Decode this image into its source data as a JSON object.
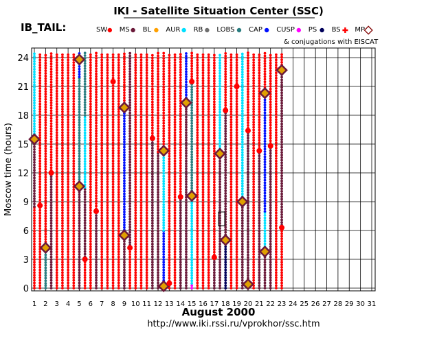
{
  "chart_data": {
    "type": "scatter",
    "title": "IKI - Satellite Situation Center (SSC)",
    "dataset_label": "IB_TAIL:",
    "xlabel": "August   2000",
    "ylabel": "Moscow time (hours)",
    "footer_url": "http://www.iki.rssi.ru/vprokhor/ssc.htm",
    "conjugations_note": "& conjugations with EISCAT",
    "xlim": [
      1,
      31
    ],
    "ylim": [
      0,
      24
    ],
    "x_ticks": [
      1,
      2,
      3,
      4,
      5,
      6,
      7,
      8,
      9,
      10,
      11,
      12,
      13,
      14,
      15,
      16,
      17,
      18,
      19,
      20,
      21,
      22,
      23,
      24,
      25,
      26,
      27,
      28,
      29,
      30,
      31
    ],
    "y_ticks": [
      0,
      3,
      6,
      9,
      12,
      15,
      18,
      21,
      24
    ],
    "grid": true,
    "legend_position": "top",
    "legend": [
      {
        "key": "SW",
        "label": "SW",
        "color": "#ff0000"
      },
      {
        "key": "MS",
        "label": "MS",
        "color": "#6b1a3a"
      },
      {
        "key": "BL",
        "label": "BL",
        "color": "#ffa000"
      },
      {
        "key": "AUR",
        "label": "AUR",
        "color": "#00e0ff"
      },
      {
        "key": "RB",
        "label": "RB",
        "color": "#707070"
      },
      {
        "key": "LOBS",
        "label": "LOBS",
        "color": "#2a7d80"
      },
      {
        "key": "CAP",
        "label": "CAP",
        "color": "#0010ff"
      },
      {
        "key": "CUSP",
        "label": "CUSP",
        "color": "#ff00ff"
      },
      {
        "key": "PS",
        "label": "PS",
        "color": "#00005a"
      },
      {
        "key": "BS",
        "label": "BS",
        "color": "#ff0000"
      },
      {
        "key": "MP",
        "label": "MP",
        "color": "#800000"
      }
    ],
    "columns": [
      {
        "day": 1,
        "segments": [
          [
            0,
            8.5,
            "SW"
          ],
          [
            8.5,
            15.5,
            "MS"
          ],
          [
            15.5,
            24.5,
            "AUR"
          ]
        ],
        "bs": [],
        "mp": [
          15.5
        ]
      },
      {
        "day": 1.5,
        "segments": [
          [
            0,
            24.5,
            "SW"
          ]
        ],
        "bs": [
          8.6
        ],
        "mp": []
      },
      {
        "day": 2,
        "segments": [
          [
            0,
            0.5,
            "LOBS"
          ],
          [
            0.5,
            4,
            "LOBS"
          ],
          [
            4,
            24.5,
            "SW"
          ]
        ],
        "bs": [],
        "mp": [
          4.2
        ]
      },
      {
        "day": 2.5,
        "segments": [
          [
            0,
            12,
            "MS"
          ],
          [
            12,
            24.5,
            "SW"
          ]
        ],
        "bs": [
          12
        ],
        "mp": []
      },
      {
        "day": 3,
        "segments": [
          [
            0,
            24.5,
            "SW"
          ]
        ],
        "bs": [],
        "mp": []
      },
      {
        "day": 3.5,
        "segments": [
          [
            0,
            24.5,
            "SW"
          ]
        ],
        "bs": [],
        "mp": []
      },
      {
        "day": 4,
        "segments": [
          [
            0,
            24.5,
            "SW"
          ]
        ],
        "bs": [],
        "mp": []
      },
      {
        "day": 4.5,
        "segments": [
          [
            0,
            24.5,
            "SW"
          ]
        ],
        "bs": [],
        "mp": []
      },
      {
        "day": 5,
        "segments": [
          [
            0,
            10.5,
            "MS"
          ],
          [
            10.5,
            22,
            "LOBS"
          ],
          [
            22,
            24.5,
            "CAP"
          ]
        ],
        "bs": [],
        "mp": [
          10.6,
          23.8
        ]
      },
      {
        "day": 5.5,
        "segments": [
          [
            0,
            3,
            "SW"
          ],
          [
            3,
            10.5,
            "MS"
          ],
          [
            10.5,
            18,
            "AUR"
          ],
          [
            18,
            24.5,
            "LOBS"
          ]
        ],
        "bs": [
          3
        ],
        "mp": []
      },
      {
        "day": 6,
        "segments": [
          [
            0,
            24.5,
            "SW"
          ]
        ],
        "bs": [],
        "mp": []
      },
      {
        "day": 6.5,
        "segments": [
          [
            0,
            8,
            "MS"
          ],
          [
            8,
            24.5,
            "SW"
          ]
        ],
        "bs": [
          8
        ],
        "mp": []
      },
      {
        "day": 7,
        "segments": [
          [
            0,
            24.5,
            "SW"
          ]
        ],
        "bs": [],
        "mp": []
      },
      {
        "day": 7.5,
        "segments": [
          [
            0,
            24.5,
            "SW"
          ]
        ],
        "bs": [],
        "mp": []
      },
      {
        "day": 8,
        "segments": [
          [
            0,
            24.5,
            "SW"
          ]
        ],
        "bs": [
          21.5
        ],
        "mp": []
      },
      {
        "day": 8.5,
        "segments": [
          [
            0,
            24.5,
            "SW"
          ]
        ],
        "bs": [],
        "mp": []
      },
      {
        "day": 9,
        "segments": [
          [
            0,
            5.5,
            "MS"
          ],
          [
            5.5,
            19,
            "CAP"
          ],
          [
            19,
            24.5,
            "SW"
          ]
        ],
        "bs": [],
        "mp": [
          5.5,
          18.8
        ]
      },
      {
        "day": 9.5,
        "segments": [
          [
            0,
            4.2,
            "SW"
          ],
          [
            4.2,
            24.5,
            "MS"
          ]
        ],
        "bs": [
          4.2
        ],
        "mp": []
      },
      {
        "day": 10,
        "segments": [
          [
            0,
            24.5,
            "SW"
          ]
        ],
        "bs": [],
        "mp": []
      },
      {
        "day": 10.5,
        "segments": [
          [
            0,
            24.5,
            "SW"
          ]
        ],
        "bs": [],
        "mp": []
      },
      {
        "day": 11,
        "segments": [
          [
            0,
            24.5,
            "SW"
          ]
        ],
        "bs": [],
        "mp": []
      },
      {
        "day": 11.5,
        "segments": [
          [
            0,
            15.6,
            "MS"
          ],
          [
            15.6,
            24.5,
            "SW"
          ]
        ],
        "bs": [
          15.6
        ],
        "mp": []
      },
      {
        "day": 12,
        "segments": [
          [
            0,
            14.2,
            "MS"
          ],
          [
            14.2,
            24.5,
            "SW"
          ]
        ],
        "bs": [],
        "mp": []
      },
      {
        "day": 12.5,
        "segments": [
          [
            0,
            6,
            "CAP"
          ],
          [
            6,
            14.2,
            "AUR"
          ],
          [
            14.2,
            24.5,
            "SW"
          ]
        ],
        "bs": [],
        "mp": [
          0.2,
          14.3
        ]
      },
      {
        "day": 13,
        "segments": [
          [
            0,
            0.5,
            "SW"
          ],
          [
            0.5,
            24.5,
            "SW"
          ]
        ],
        "bs": [
          0.5
        ],
        "mp": []
      },
      {
        "day": 13.5,
        "segments": [
          [
            0,
            24.5,
            "SW"
          ]
        ],
        "bs": [],
        "mp": []
      },
      {
        "day": 14,
        "segments": [
          [
            0,
            9.5,
            "MS"
          ],
          [
            9.5,
            24.5,
            "SW"
          ]
        ],
        "bs": [
          9.5
        ],
        "mp": []
      },
      {
        "day": 14.5,
        "segments": [
          [
            0,
            19.3,
            "MS"
          ],
          [
            19.3,
            24.5,
            "CAP"
          ]
        ],
        "bs": [],
        "mp": [
          19.3
        ]
      },
      {
        "day": 15,
        "segments": [
          [
            0,
            0.5,
            "CUSP"
          ],
          [
            0.5,
            9.6,
            "AUR"
          ],
          [
            9.6,
            21.5,
            "LOBS"
          ],
          [
            21.5,
            24.5,
            "SW"
          ]
        ],
        "bs": [
          21.5
        ],
        "mp": [
          9.6
        ]
      },
      {
        "day": 15.5,
        "segments": [
          [
            0,
            24.5,
            "SW"
          ]
        ],
        "bs": [],
        "mp": []
      },
      {
        "day": 16,
        "segments": [
          [
            0,
            24.5,
            "SW"
          ]
        ],
        "bs": [],
        "mp": []
      },
      {
        "day": 16.5,
        "segments": [
          [
            0,
            24.5,
            "SW"
          ]
        ],
        "bs": [],
        "mp": []
      },
      {
        "day": 17,
        "segments": [
          [
            0,
            3.2,
            "MS"
          ],
          [
            3.2,
            24.5,
            "SW"
          ]
        ],
        "bs": [
          3.2
        ],
        "mp": []
      },
      {
        "day": 17.5,
        "segments": [
          [
            0,
            14,
            "MS"
          ],
          [
            14,
            24.5,
            "AUR"
          ]
        ],
        "bs": [],
        "mp": [
          14
        ]
      },
      {
        "day": 18,
        "segments": [
          [
            0,
            5,
            "PS"
          ],
          [
            5,
            18.5,
            "MS"
          ],
          [
            18.5,
            24.5,
            "SW"
          ]
        ],
        "bs": [
          18.5
        ],
        "mp": [
          5
        ]
      },
      {
        "day": 18.5,
        "segments": [
          [
            0,
            24.5,
            "SW"
          ]
        ],
        "bs": [],
        "mp": []
      },
      {
        "day": 19,
        "segments": [
          [
            0,
            24.5,
            "SW"
          ]
        ],
        "bs": [
          21
        ],
        "mp": []
      },
      {
        "day": 19.5,
        "segments": [
          [
            0,
            9,
            "MS"
          ],
          [
            9,
            24.5,
            "AUR"
          ]
        ],
        "bs": [],
        "mp": [
          9
        ]
      },
      {
        "day": 20,
        "segments": [
          [
            0,
            0.5,
            "MS"
          ],
          [
            0.5,
            16.4,
            "MS"
          ],
          [
            16.4,
            24.5,
            "SW"
          ]
        ],
        "bs": [
          16.4
        ],
        "mp": [
          0.4
        ]
      },
      {
        "day": 20.5,
        "segments": [
          [
            0,
            24.5,
            "SW"
          ]
        ],
        "bs": [],
        "mp": []
      },
      {
        "day": 21,
        "segments": [
          [
            0,
            14.3,
            "MS"
          ],
          [
            14.3,
            24.5,
            "SW"
          ]
        ],
        "bs": [
          14.3
        ],
        "mp": []
      },
      {
        "day": 21.5,
        "segments": [
          [
            0,
            3.8,
            "MS"
          ],
          [
            3.8,
            8,
            "AUR"
          ],
          [
            8,
            20.4,
            "CAP"
          ],
          [
            20.4,
            24.5,
            "SW"
          ]
        ],
        "bs": [],
        "mp": [
          3.8,
          20.3
        ]
      },
      {
        "day": 22,
        "segments": [
          [
            0,
            14.8,
            "MS"
          ],
          [
            14.8,
            24.5,
            "SW"
          ]
        ],
        "bs": [
          14.8
        ],
        "mp": []
      },
      {
        "day": 22.5,
        "segments": [
          [
            0,
            24.5,
            "SW"
          ]
        ],
        "bs": [],
        "mp": []
      },
      {
        "day": 23,
        "segments": [
          [
            0,
            6.3,
            "SW"
          ],
          [
            6.3,
            22.7,
            "MS"
          ],
          [
            22.7,
            24.5,
            "SW"
          ]
        ],
        "bs": [
          6.3
        ],
        "mp": [
          22.7
        ]
      }
    ]
  }
}
